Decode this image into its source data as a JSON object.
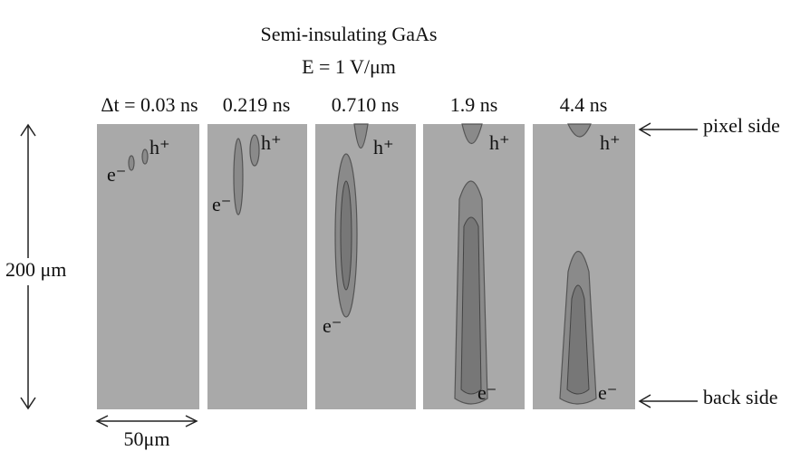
{
  "title": "Semi-insulating GaAs",
  "subtitle": "E = 1 V/μm",
  "panels": [
    {
      "time": "Δt = 0.03 ns",
      "electron": "e⁻",
      "hole": "h⁺"
    },
    {
      "time": "0.219 ns",
      "electron": "e⁻",
      "hole": "h⁺"
    },
    {
      "time": "0.710 ns",
      "electron": "e⁻",
      "hole": "h⁺"
    },
    {
      "time": "1.9 ns",
      "electron": "e⁻",
      "hole": "h⁺"
    },
    {
      "time": "4.4 ns",
      "electron": "e⁻",
      "hole": "h⁺"
    }
  ],
  "depth_label": "200 μm",
  "width_label": "50μm",
  "top_label": "pixel side",
  "bottom_label": "back side"
}
